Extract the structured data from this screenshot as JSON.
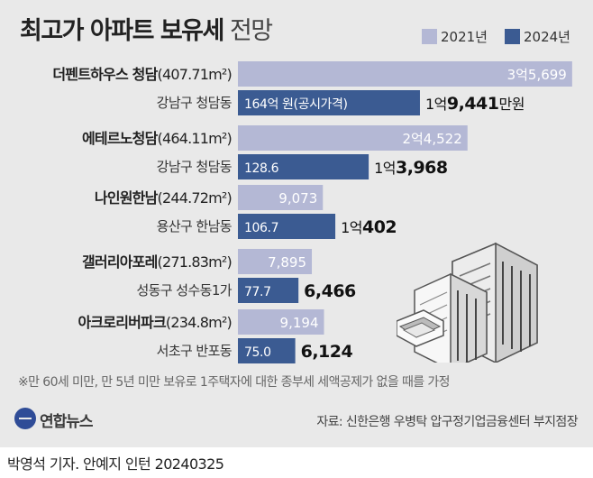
{
  "header": {
    "title_bold": "최고가 아파트 보유세",
    "title_light": "전망"
  },
  "colors": {
    "panel_bg": "#e9e9e9",
    "series_2021": "#b4b8d5",
    "series_2024": "#3b5b92",
    "text_dark": "#222222"
  },
  "chart_data": {
    "type": "bar",
    "orientation": "horizontal",
    "title": "최고가 아파트 보유세 전망",
    "categories": [
      "더펜트하우스 청담",
      "에테르노청담",
      "나인원한남",
      "갤러리아포레",
      "아크로리버파크"
    ],
    "areas": [
      "(407.71m²)",
      "(464.11m²)",
      "(244.72m²)",
      "(271.83m²)",
      "(234.8m²)"
    ],
    "locations": [
      "강남구 청담동",
      "강남구 청담동",
      "용산구 한남동",
      "성동구 성수동1가",
      "서초구 반포동"
    ],
    "series": [
      {
        "name": "2021년",
        "values": [
          35699,
          24522,
          9073,
          7895,
          9194
        ],
        "labels": [
          "3억5,699",
          "2억4,522",
          "9,073",
          "7,895",
          "9,194"
        ]
      },
      {
        "name": "2024년",
        "values": [
          19441,
          13968,
          10402,
          6466,
          6124
        ],
        "label_prefix": [
          "1억",
          "1억",
          "1억",
          "",
          ""
        ],
        "label_main": [
          "9,441",
          "3,968",
          "402",
          "6,466",
          "6,124"
        ],
        "label_suffix": [
          "만원",
          "",
          "",
          "",
          ""
        ],
        "inner_labels": [
          "164억 원(공시가격)",
          "128.6",
          "106.7",
          "77.7",
          "75.0"
        ]
      }
    ],
    "xlim": [
      0,
      36000
    ],
    "legend_position": "top-right",
    "grid": false
  },
  "footnote": "※만 60세 미만, 만 5년 미만 보유로 1주택자에 대한 종부세 세액공제가 없을 때를 가정",
  "logo": {
    "name": "연합뉴스"
  },
  "source": "자료: 신한은행 우병탁 압구정기업금융센터 부지점장",
  "credit": "박영석 기자. 안예지 인턴 20240325"
}
